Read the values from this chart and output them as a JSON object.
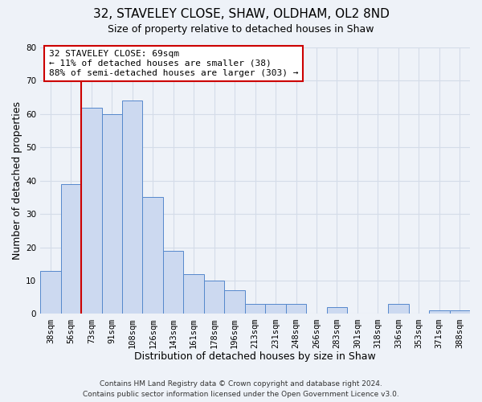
{
  "title": "32, STAVELEY CLOSE, SHAW, OLDHAM, OL2 8ND",
  "subtitle": "Size of property relative to detached houses in Shaw",
  "xlabel": "Distribution of detached houses by size in Shaw",
  "ylabel": "Number of detached properties",
  "bin_labels": [
    "38sqm",
    "56sqm",
    "73sqm",
    "91sqm",
    "108sqm",
    "126sqm",
    "143sqm",
    "161sqm",
    "178sqm",
    "196sqm",
    "213sqm",
    "231sqm",
    "248sqm",
    "266sqm",
    "283sqm",
    "301sqm",
    "318sqm",
    "336sqm",
    "353sqm",
    "371sqm",
    "388sqm"
  ],
  "bar_values": [
    13,
    39,
    62,
    60,
    64,
    35,
    19,
    12,
    10,
    7,
    3,
    3,
    3,
    0,
    2,
    0,
    0,
    3,
    0,
    1,
    1
  ],
  "bar_color": "#ccd9f0",
  "bar_edge_color": "#5588cc",
  "vline_color": "#cc0000",
  "vline_index": 1.5,
  "ylim": [
    0,
    80
  ],
  "yticks": [
    0,
    10,
    20,
    30,
    40,
    50,
    60,
    70,
    80
  ],
  "annotation_line1": "32 STAVELEY CLOSE: 69sqm",
  "annotation_line2": "← 11% of detached houses are smaller (38)",
  "annotation_line3": "88% of semi-detached houses are larger (303) →",
  "annotation_box_color": "#cc0000",
  "footer_line1": "Contains HM Land Registry data © Crown copyright and database right 2024.",
  "footer_line2": "Contains public sector information licensed under the Open Government Licence v3.0.",
  "background_color": "#eef2f8",
  "grid_color": "#d4dce8",
  "title_fontsize": 11,
  "subtitle_fontsize": 9,
  "axis_label_fontsize": 9,
  "tick_fontsize": 7.5,
  "annotation_fontsize": 8,
  "footer_fontsize": 6.5
}
